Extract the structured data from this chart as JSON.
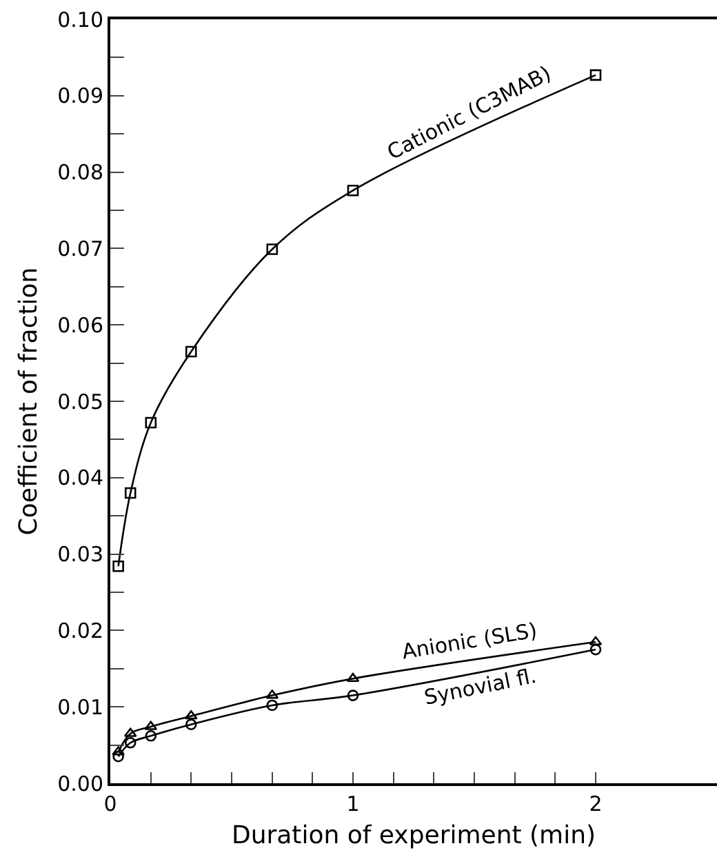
{
  "chart_data": {
    "type": "line",
    "xlabel": "Duration of experiment (min)",
    "ylabel": "Coefficient of fraction",
    "xlim": [
      0,
      2.5
    ],
    "ylim": [
      0,
      0.1
    ],
    "xticks": [
      0,
      {
        "value": 0.1667,
        "label": null
      },
      {
        "value": 0.3333,
        "label": null
      },
      {
        "value": 0.5,
        "label": null
      },
      {
        "value": 0.6667,
        "label": null
      },
      {
        "value": 0.8333,
        "label": null
      },
      1,
      {
        "value": 1.1667,
        "label": null
      },
      {
        "value": 1.3333,
        "label": null
      },
      {
        "value": 1.5,
        "label": null
      },
      {
        "value": 1.6667,
        "label": null
      },
      {
        "value": 1.8333,
        "label": null
      },
      2
    ],
    "yticks": [
      {
        "value": 0,
        "label": "0.00"
      },
      {
        "value": 0.005,
        "label": null
      },
      0.01,
      {
        "value": 0.015,
        "label": null
      },
      0.02,
      {
        "value": 0.025,
        "label": null
      },
      0.03,
      {
        "value": 0.035,
        "label": null
      },
      0.04,
      {
        "value": 0.045,
        "label": null
      },
      0.05,
      {
        "value": 0.055,
        "label": null
      },
      0.06,
      {
        "value": 0.065,
        "label": null
      },
      0.07,
      {
        "value": 0.075,
        "label": null
      },
      0.08,
      {
        "value": 0.085,
        "label": null
      },
      0.09,
      {
        "value": 0.095,
        "label": null
      },
      {
        "value": 0.1,
        "label": "0.10"
      }
    ],
    "legend": false,
    "line_style": "solid",
    "series": [
      {
        "name": "Cationic (C3MAB)",
        "color": "#000000",
        "marker": "square",
        "x": [
          0.033,
          0.083,
          0.167,
          0.333,
          0.667,
          1,
          2
        ],
        "values": [
          0.0284,
          0.038,
          0.0472,
          0.0565,
          0.0699,
          0.0776,
          0.0927
        ]
      },
      {
        "name": "Anionic (SLS)",
        "color": "#000000",
        "marker": "triangle",
        "x": [
          0.033,
          0.083,
          0.167,
          0.333,
          0.667,
          1,
          2
        ],
        "values": [
          0.0041,
          0.0065,
          0.0074,
          0.0088,
          0.0115,
          0.0137,
          0.0185
        ]
      },
      {
        "name": "Synovial fl.",
        "color": "#000000",
        "marker": "circle",
        "x": [
          0.033,
          0.083,
          0.167,
          0.333,
          0.667,
          1,
          2
        ],
        "values": [
          0.0035,
          0.0053,
          0.0062,
          0.0077,
          0.0102,
          0.0115,
          0.0175
        ]
      }
    ]
  }
}
